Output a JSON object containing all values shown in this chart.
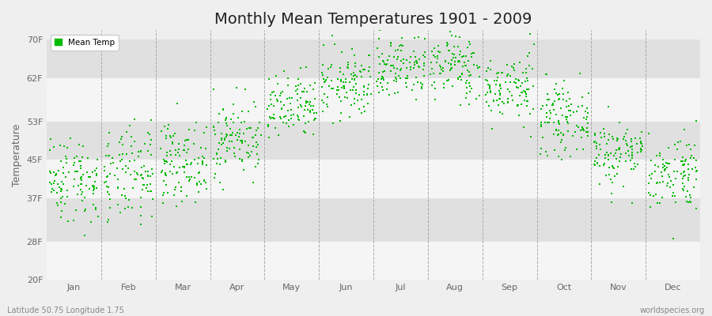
{
  "title": "Monthly Mean Temperatures 1901 - 2009",
  "ylabel": "Temperature",
  "xlabel_bottom": "Latitude 50.75 Longitude 1.75",
  "xlabel_bottomright": "worldspecies.org",
  "legend_label": "Mean Temp",
  "marker_color": "#00BB00",
  "background_color": "#EFEFEF",
  "plot_bg_color": "#EFEFEF",
  "yticks": [
    20,
    28,
    37,
    45,
    53,
    62,
    70
  ],
  "ytick_labels": [
    "20F",
    "28F",
    "37F",
    "45F",
    "53F",
    "62F",
    "70F"
  ],
  "ylim": [
    20,
    72
  ],
  "months": [
    "Jan",
    "Feb",
    "Mar",
    "Apr",
    "May",
    "Jun",
    "Jul",
    "Aug",
    "Sep",
    "Oct",
    "Nov",
    "Dec"
  ],
  "mean_temps_f": [
    41.0,
    41.5,
    44.5,
    49.5,
    55.5,
    60.5,
    64.5,
    64.5,
    60.0,
    53.5,
    46.5,
    42.5
  ],
  "std_temps_f": [
    4.5,
    5.0,
    4.0,
    4.0,
    3.5,
    3.5,
    3.5,
    3.5,
    3.5,
    3.5,
    3.5,
    4.0
  ],
  "n_years": 109,
  "seed": 42,
  "band_colors": [
    "#F5F5F5",
    "#E0E0E0"
  ],
  "dashed_line_color": "#AAAAAA",
  "title_fontsize": 14,
  "axis_label_fontsize": 9,
  "tick_fontsize": 8
}
